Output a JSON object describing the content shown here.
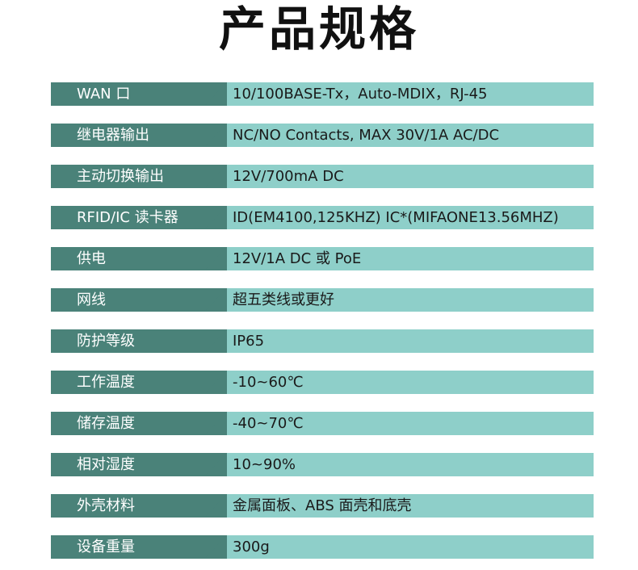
{
  "title": "产品规格",
  "colors": {
    "label_bg": "#4a8279",
    "value_bg": "#8ecfc9",
    "label_text": "#ffffff",
    "value_text": "#1a1a1a"
  },
  "specs": [
    {
      "label": "WAN 口",
      "value": "10/100BASE-Tx，Auto-MDIX，RJ-45"
    },
    {
      "label": "继电器输出",
      "value": "NC/NO Contacts, MAX 30V/1A AC/DC"
    },
    {
      "label": "主动切换输出",
      "value": "12V/700mA DC"
    },
    {
      "label": "RFID/IC 读卡器",
      "value": "ID(EM4100,125KHZ)  IC*(MIFAONE13.56MHZ)"
    },
    {
      "label": "供电",
      "value": "12V/1A DC 或 PoE"
    },
    {
      "label": "网线",
      "value": "超五类线或更好"
    },
    {
      "label": "防护等级",
      "value": "IP65"
    },
    {
      "label": "工作温度",
      "value": "-10~60℃"
    },
    {
      "label": "储存温度",
      "value": "-40~70℃"
    },
    {
      "label": "相对湿度",
      "value": "10~90%"
    },
    {
      "label": "外壳材料",
      "value": "金属面板、ABS 面壳和底壳"
    },
    {
      "label": "设备重量",
      "value": "300g"
    }
  ]
}
